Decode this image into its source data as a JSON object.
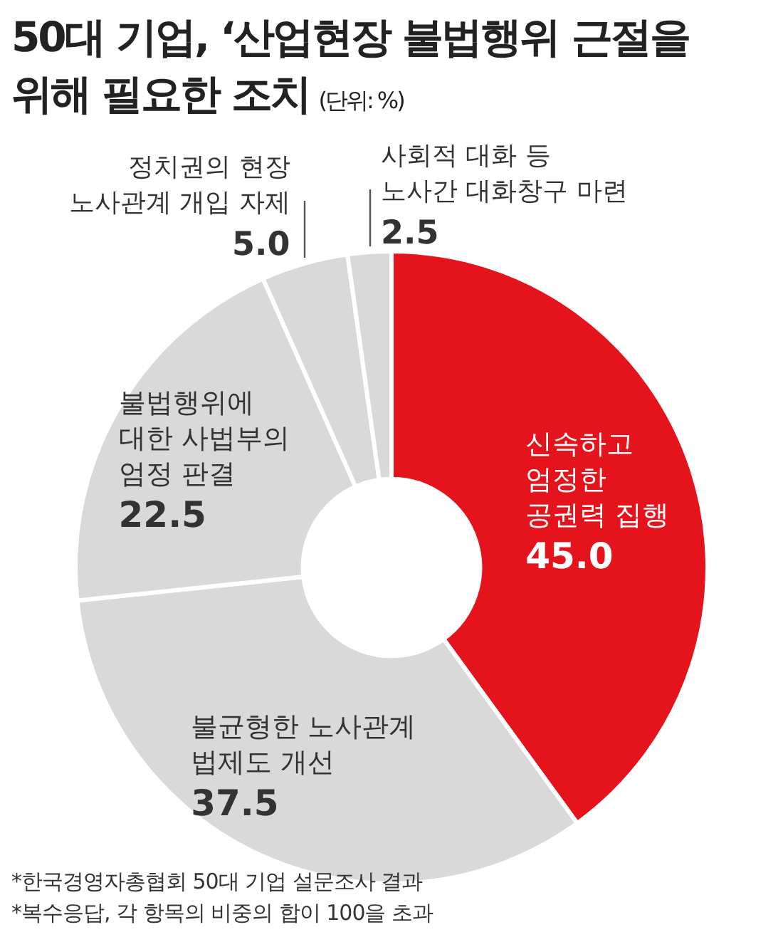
{
  "chart_data": {
    "type": "donut",
    "title": "50대 기업, ‘산업현장 불법행위 근절을\n위해 필요한 조치",
    "subtitle": "(단위: %)",
    "categories": [
      "신속하고\n엄정한\n공권력 집행",
      "불균형한 노사관계\n법제도 개선",
      "불법행위에\n대한 사법부의\n엄정 판결",
      "정치권의 현장\n노사관계 개입 자제",
      "사회적 대화 등\n노사간 대화창구 마련"
    ],
    "values": [
      45.0,
      37.5,
      22.5,
      5.0,
      2.5
    ],
    "value_labels": [
      "45.0",
      "37.5",
      "22.5",
      "5.0",
      "2.5"
    ],
    "colors": [
      "#e5131b",
      "#d9d9d9",
      "#d9d9d9",
      "#d9d9d9",
      "#d9d9d9"
    ],
    "annotations": [
      "*한국경영자총협회 50대 기업 설문조사 결과",
      "*복수응답, 각 항목의 비중의 합이 100을 초과"
    ],
    "legend": false
  }
}
